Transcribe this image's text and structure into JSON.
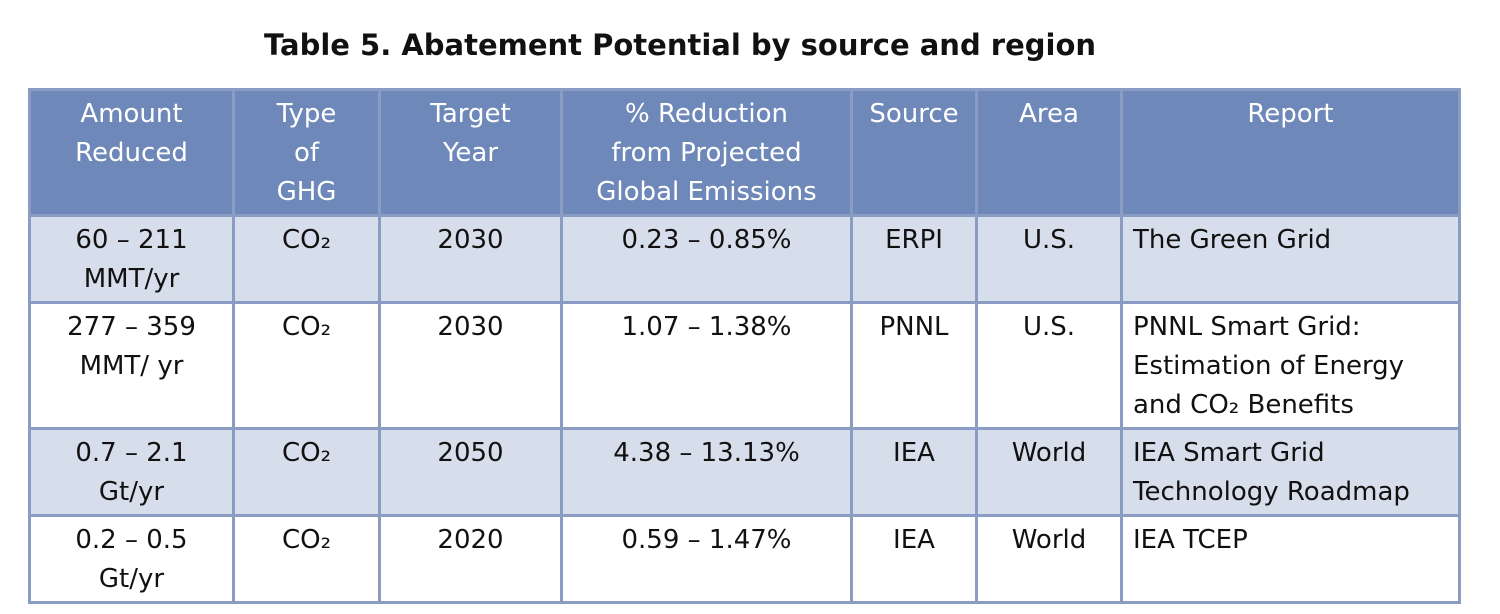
{
  "title": "Table 5.  Abatement Potential by source and region",
  "table": {
    "header": [
      [
        "Amount",
        "Reduced"
      ],
      [
        "Type",
        "of",
        "GHG"
      ],
      [
        "Target",
        "Year"
      ],
      [
        "% Reduction",
        "from Projected",
        "Global Emissions"
      ],
      [
        "Source"
      ],
      [
        "Area"
      ],
      [
        "Report"
      ]
    ],
    "rows": [
      [
        [
          "60 – 211",
          "MMT/yr"
        ],
        [
          "CO₂"
        ],
        [
          "2030"
        ],
        [
          "0.23 – 0.85%"
        ],
        [
          "ERPI"
        ],
        [
          "U.S."
        ],
        [
          "The Green Grid"
        ]
      ],
      [
        [
          "277 – 359",
          "MMT/ yr"
        ],
        [
          "CO₂"
        ],
        [
          "2030"
        ],
        [
          "1.07 – 1.38%"
        ],
        [
          "PNNL"
        ],
        [
          "U.S."
        ],
        [
          "PNNL Smart Grid:",
          "Estimation of Energy",
          "and CO₂ Benefits"
        ]
      ],
      [
        [
          "0.7 – 2.1",
          "Gt/yr"
        ],
        [
          "CO₂"
        ],
        [
          "2050"
        ],
        [
          "4.38 – 13.13%"
        ],
        [
          "IEA"
        ],
        [
          "World"
        ],
        [
          "IEA Smart Grid",
          "Technology Roadmap"
        ]
      ],
      [
        [
          "0.2 – 0.5",
          "Gt/yr"
        ],
        [
          "CO₂"
        ],
        [
          "2020"
        ],
        [
          "0.59 – 1.47%"
        ],
        [
          "IEA"
        ],
        [
          "World"
        ],
        [
          "IEA TCEP"
        ]
      ]
    ]
  }
}
